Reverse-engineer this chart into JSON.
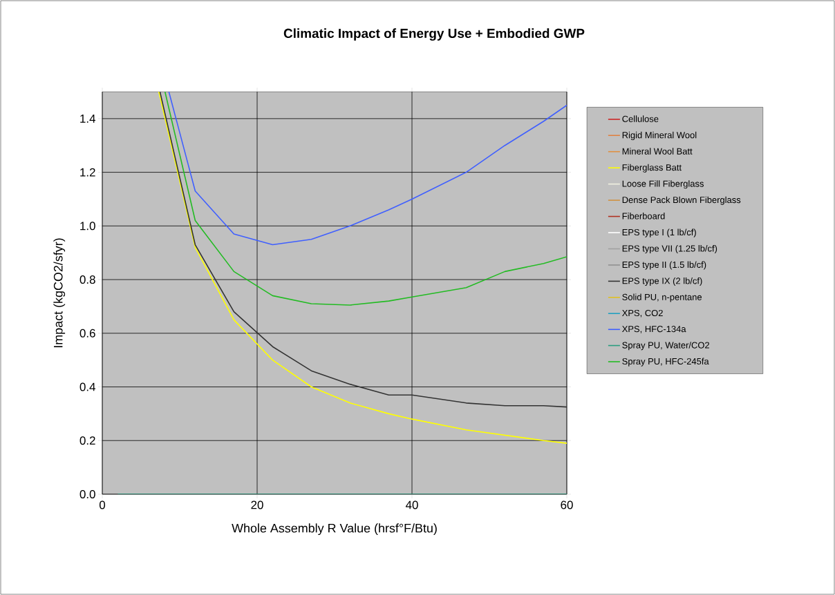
{
  "chart_data": {
    "type": "line",
    "title": "Climatic Impact of Energy Use + Embodied GWP",
    "xlabel": "Whole Assembly R Value (hrsf°F/Btu)",
    "ylabel": "Impact  (kgCO2/sfyr)",
    "xlim": [
      0,
      60
    ],
    "xticks": [
      0,
      20,
      40,
      60
    ],
    "ylim": [
      0,
      1.5
    ],
    "yticks": [
      {
        "value": 0,
        "label": "0.0"
      },
      {
        "value": 0.2,
        "label": "0.2"
      },
      {
        "value": 0.4,
        "label": "0.4"
      },
      {
        "value": 0.6,
        "label": "0.6"
      },
      {
        "value": 0.8,
        "label": "0.8"
      },
      {
        "value": 1.0,
        "label": "1.0"
      },
      {
        "value": 1.2,
        "label": "1.2"
      },
      {
        "value": 1.4,
        "label": "1.4"
      }
    ],
    "grid": true,
    "legend": "right",
    "marker": "none",
    "line_style": "solid",
    "series": [
      {
        "name": "Cellulose",
        "color": "#cc2222",
        "values": [
          null
        ]
      },
      {
        "name": "Rigid Mineral Wool",
        "color": "#e08040",
        "values": [
          null
        ]
      },
      {
        "name": "Mineral Wool Batt",
        "color": "#e09040",
        "values": [
          null
        ]
      },
      {
        "name": "Fiberglass Batt",
        "color": "#ffff00",
        "x": [
          7.3,
          12,
          17,
          22,
          27,
          32,
          37,
          40,
          47,
          52,
          57,
          60
        ],
        "values": [
          1.5,
          0.92,
          0.65,
          0.5,
          0.4,
          0.34,
          0.3,
          0.28,
          0.24,
          0.22,
          0.2,
          0.19
        ]
      },
      {
        "name": "Loose Fill Fiberglass",
        "color": "#f0f0e0",
        "values": [
          null
        ]
      },
      {
        "name": "Dense Pack Blown Fiberglass",
        "color": "#d09040",
        "values": [
          null
        ]
      },
      {
        "name": "Fiberboard",
        "color": "#b03020",
        "values": [
          null
        ]
      },
      {
        "name": "EPS type I (1 lb/cf)",
        "color": "#ffffff",
        "values": [
          null
        ]
      },
      {
        "name": "EPS type VII (1.25 lb/cf)",
        "color": "#a0a0a0",
        "values": [
          null
        ]
      },
      {
        "name": "EPS type II (1.5 lb/cf)",
        "color": "#909090",
        "values": [
          null
        ]
      },
      {
        "name": "EPS type IX (2 lb/cf)",
        "color": "#333333",
        "x": [
          7.45,
          12,
          17,
          22,
          27,
          32,
          37,
          40,
          47,
          52,
          57,
          60
        ],
        "values": [
          1.5,
          0.93,
          0.68,
          0.55,
          0.46,
          0.41,
          0.37,
          0.37,
          0.34,
          0.33,
          0.33,
          0.325
        ]
      },
      {
        "name": "Solid PU, n-pentane",
        "color": "#e0c020",
        "values": [
          null
        ]
      },
      {
        "name": "XPS, CO2",
        "color": "#20a0c0",
        "values": [
          null
        ]
      },
      {
        "name": "XPS, HFC-134a",
        "color": "#3f5fff",
        "x": [
          8.6,
          12,
          17,
          22,
          27,
          32,
          37,
          40,
          47,
          52,
          57,
          60
        ],
        "values": [
          1.5,
          1.13,
          0.97,
          0.93,
          0.95,
          1.0,
          1.06,
          1.1,
          1.2,
          1.3,
          1.39,
          1.45
        ]
      },
      {
        "name": "Spray PU, Water/CO2",
        "color": "#2a9d7f",
        "x": [
          2,
          60
        ],
        "values": [
          0,
          0
        ]
      },
      {
        "name": "Spray PU, HFC-245fa",
        "color": "#22bb22",
        "x": [
          8.1,
          12,
          17,
          22,
          27,
          32,
          37,
          40,
          47,
          52,
          57,
          60
        ],
        "values": [
          1.5,
          1.02,
          0.83,
          0.74,
          0.71,
          0.705,
          0.72,
          0.735,
          0.77,
          0.83,
          0.86,
          0.885
        ]
      }
    ]
  }
}
